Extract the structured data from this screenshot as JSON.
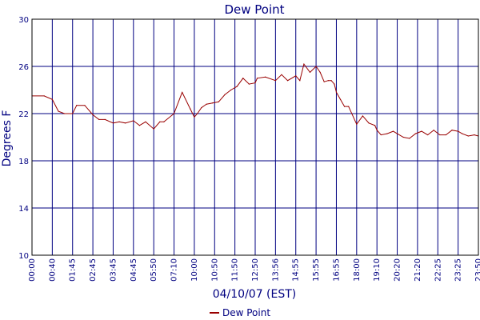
{
  "chart_data": {
    "type": "line",
    "title": "Dew Point",
    "xlabel": "04/10/07 (EST)",
    "ylabel": "Degrees F",
    "ylim": [
      10,
      30
    ],
    "y_ticks": [
      "10",
      "14",
      "18",
      "22",
      "26",
      "30"
    ],
    "x_ticks": [
      "00:00",
      "00:40",
      "01:45",
      "02:45",
      "03:45",
      "04:45",
      "05:50",
      "07:10",
      "10:00",
      "10:50",
      "11:50",
      "12:50",
      "13:56",
      "14:55",
      "15:55",
      "16:55",
      "18:00",
      "19:10",
      "20:20",
      "21:20",
      "22:25",
      "23:25",
      "23:50"
    ],
    "grid": true,
    "legend_position": "bottom-center",
    "colors": {
      "series": "#990000",
      "grid": "#000080",
      "text": "#000080"
    },
    "series": [
      {
        "name": "Dew Point",
        "x_tick_index": [
          0,
          0.6,
          1.0,
          1.3,
          1.6,
          2.0,
          2.2,
          2.6,
          3.0,
          3.3,
          3.6,
          4.0,
          4.3,
          4.6,
          5.0,
          5.3,
          5.6,
          6.0,
          6.3,
          6.5,
          7.0,
          7.4,
          7.8,
          8.0,
          8.15,
          8.35,
          8.6,
          8.9,
          9.2,
          9.5,
          9.8,
          10.1,
          10.4,
          10.7,
          11.0,
          11.1,
          11.5,
          12.0,
          12.3,
          12.6,
          13.0,
          13.2,
          13.4,
          13.7,
          14.0,
          14.2,
          14.4,
          14.6,
          14.75,
          14.9,
          15.0,
          15.2,
          15.4,
          15.6,
          16.0,
          16.3,
          16.6,
          16.9,
          17.0,
          17.2,
          17.5,
          17.8,
          18.0,
          18.3,
          18.6,
          18.9,
          19.2,
          19.5,
          19.8,
          20.1,
          20.4,
          20.7,
          21.0,
          21.2,
          21.5,
          21.8,
          22.0
        ],
        "values": [
          23.5,
          23.5,
          23.2,
          22.2,
          22.0,
          22.0,
          22.7,
          22.7,
          21.9,
          21.5,
          21.5,
          21.2,
          21.3,
          21.2,
          21.4,
          21.0,
          21.3,
          20.7,
          21.3,
          21.3,
          22.0,
          23.8,
          22.4,
          21.7,
          22.0,
          22.5,
          22.8,
          22.9,
          23.0,
          23.6,
          24.0,
          24.3,
          25.0,
          24.5,
          24.6,
          25.0,
          25.1,
          24.8,
          25.3,
          24.8,
          25.2,
          24.8,
          26.2,
          25.5,
          26.0,
          25.5,
          24.7,
          24.8,
          24.8,
          24.5,
          23.8,
          23.2,
          22.6,
          22.6,
          21.1,
          21.8,
          21.2,
          21.0,
          20.6,
          20.2,
          20.3,
          20.5,
          20.3,
          20.0,
          19.9,
          20.3,
          20.5,
          20.2,
          20.6,
          20.2,
          20.2,
          20.6,
          20.5,
          20.3,
          20.1,
          20.2,
          20.1
        ]
      }
    ]
  }
}
